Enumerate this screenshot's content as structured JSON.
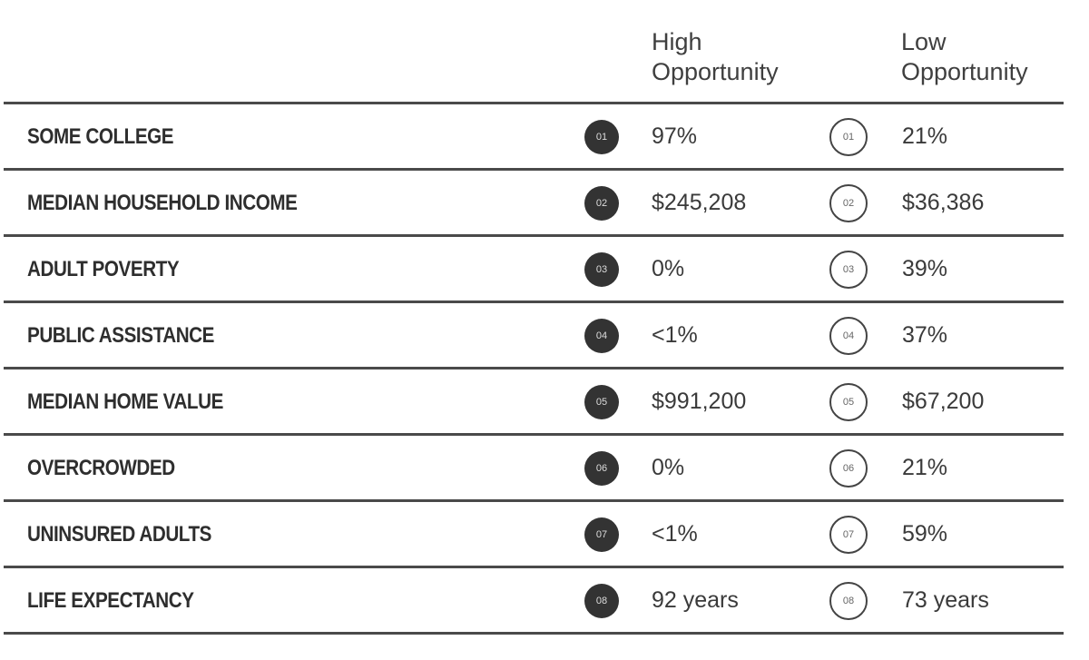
{
  "columns": {
    "high": [
      "High",
      "Opportunity"
    ],
    "low": [
      "Low",
      "Opportunity"
    ]
  },
  "rows": [
    {
      "label": "SOME COLLEGE",
      "num": "01",
      "high": "97%",
      "low": " 21%"
    },
    {
      "label": "MEDIAN HOUSEHOLD INCOME",
      "num": "02",
      "high": "$245,208",
      "low": "$36,386"
    },
    {
      "label": "ADULT POVERTY",
      "num": "03",
      "high": "0%",
      "low": "39%"
    },
    {
      "label": "PUBLIC ASSISTANCE",
      "num": "04",
      "high": "<1%",
      "low": "37%"
    },
    {
      "label": "MEDIAN HOME VALUE",
      "num": "05",
      "high": "$991,200",
      "low": "$67,200"
    },
    {
      "label": "OVERCROWDED",
      "num": "06",
      "high": "0%",
      "low": "21%"
    },
    {
      "label": "UNINSURED ADULTS",
      "num": "07",
      "high": "<1%",
      "low": "59%"
    },
    {
      "label": "LIFE EXPECTANCY",
      "num": "08",
      "high": "92 years",
      "low": "73 years"
    }
  ]
}
